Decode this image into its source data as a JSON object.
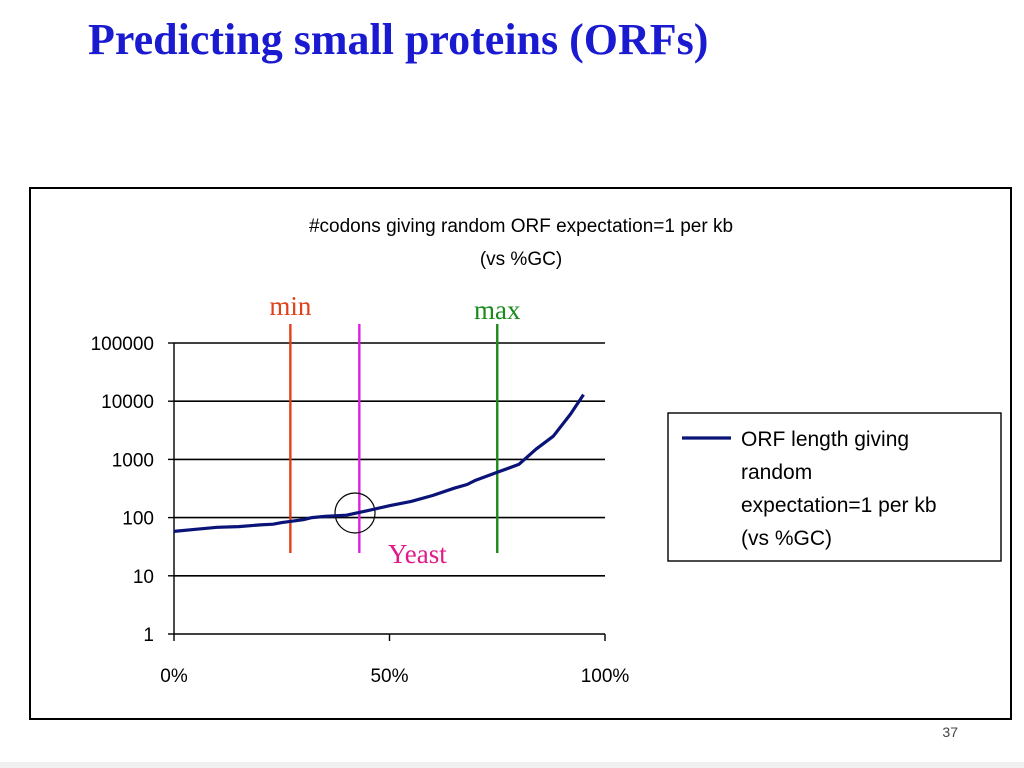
{
  "slide": {
    "title": "Predicting small proteins (ORFs)",
    "page_number": "37"
  },
  "colors": {
    "title": "#1a1ad0",
    "series": "#0a1478",
    "min": "#e0401a",
    "yeast_marker": "#e020e0",
    "max": "#1a8a1a",
    "yeast_label": "#e01a8a"
  },
  "chart_data": {
    "type": "line",
    "title_lines": [
      "#codons giving random ORF expectation=1 per kb",
      "(vs %GC)"
    ],
    "xlabel": "",
    "ylabel": "",
    "x_scale": "linear",
    "y_scale": "log",
    "xlim": [
      0,
      1
    ],
    "ylim": [
      1,
      100000
    ],
    "x_ticks": [
      {
        "value": 0,
        "label": "0%"
      },
      {
        "value": 0.5,
        "label": "50%"
      },
      {
        "value": 1,
        "label": "100%"
      }
    ],
    "y_ticks": [
      {
        "value": 1,
        "label": "1"
      },
      {
        "value": 10,
        "label": "10"
      },
      {
        "value": 100,
        "label": "100"
      },
      {
        "value": 1000,
        "label": "1000"
      },
      {
        "value": 10000,
        "label": "10000"
      },
      {
        "value": 100000,
        "label": "100000"
      }
    ],
    "grid": "horizontal",
    "legend_position": "right",
    "series": [
      {
        "name": "ORF length giving random expectation=1 per kb (vs %GC)",
        "legend_lines": [
          "ORF length giving",
          "random",
          "expectation=1 per kb",
          "(vs %GC)"
        ],
        "color": "#0a1478",
        "points": [
          [
            0.0,
            58
          ],
          [
            0.05,
            63
          ],
          [
            0.1,
            68
          ],
          [
            0.15,
            70
          ],
          [
            0.2,
            75
          ],
          [
            0.23,
            77
          ],
          [
            0.25,
            82
          ],
          [
            0.3,
            92
          ],
          [
            0.32,
            100
          ],
          [
            0.35,
            105
          ],
          [
            0.4,
            110
          ],
          [
            0.45,
            132
          ],
          [
            0.5,
            160
          ],
          [
            0.55,
            190
          ],
          [
            0.6,
            240
          ],
          [
            0.65,
            320
          ],
          [
            0.68,
            370
          ],
          [
            0.7,
            440
          ],
          [
            0.75,
            600
          ],
          [
            0.8,
            820
          ],
          [
            0.84,
            1500
          ],
          [
            0.88,
            2500
          ],
          [
            0.92,
            6000
          ],
          [
            0.95,
            13000
          ]
        ]
      }
    ],
    "annotations": {
      "vertical_lines": [
        {
          "x": 0.27,
          "color": "#e0401a",
          "label": "min",
          "label_color": "#e0401a"
        },
        {
          "x": 0.43,
          "color": "#e020e0",
          "label": "",
          "label_color": "#e020e0"
        },
        {
          "x": 0.75,
          "color": "#1a8a1a",
          "label": "max",
          "label_color": "#1a8a1a"
        }
      ],
      "circle": {
        "x": 0.42,
        "y": 120,
        "label": "Yeast",
        "label_color": "#e01a8a"
      }
    }
  }
}
